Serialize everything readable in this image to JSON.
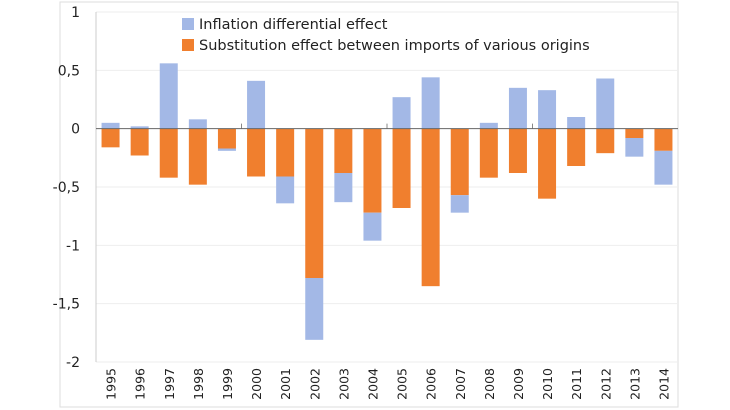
{
  "chart_data": {
    "type": "bar",
    "stacked": true,
    "categories": [
      "1995",
      "1996",
      "1997",
      "1998",
      "1999",
      "2000",
      "2001",
      "2002",
      "2003",
      "2004",
      "2005",
      "2006",
      "2007",
      "2008",
      "2009",
      "2010",
      "2011",
      "2012",
      "2013",
      "2014"
    ],
    "series": [
      {
        "name": "Inflation differential effect",
        "color": "#a3b8e6",
        "values": [
          0.05,
          0.02,
          0.56,
          0.08,
          -0.02,
          0.41,
          -0.23,
          -0.53,
          -0.25,
          -0.24,
          0.27,
          0.44,
          -0.15,
          0.05,
          0.35,
          0.33,
          0.1,
          0.43,
          -0.16,
          -0.29
        ]
      },
      {
        "name": "Substitution effect between imports of various origins",
        "color": "#f07f2e",
        "values": [
          -0.16,
          -0.23,
          -0.42,
          -0.48,
          -0.17,
          -0.41,
          -0.41,
          -1.28,
          -0.38,
          -0.72,
          -0.68,
          -1.35,
          -0.57,
          -0.42,
          -0.38,
          -0.6,
          -0.32,
          -0.21,
          -0.08,
          -0.19
        ]
      }
    ],
    "ylim": [
      -2,
      1
    ],
    "yticks": [
      1,
      0.5,
      0,
      -0.5,
      -1,
      -1.5,
      -2
    ],
    "ytick_labels": [
      "1",
      "0,5",
      "0",
      "-0,5",
      "-1",
      "-1,5",
      "-2"
    ],
    "grid": true,
    "legend": "top"
  }
}
